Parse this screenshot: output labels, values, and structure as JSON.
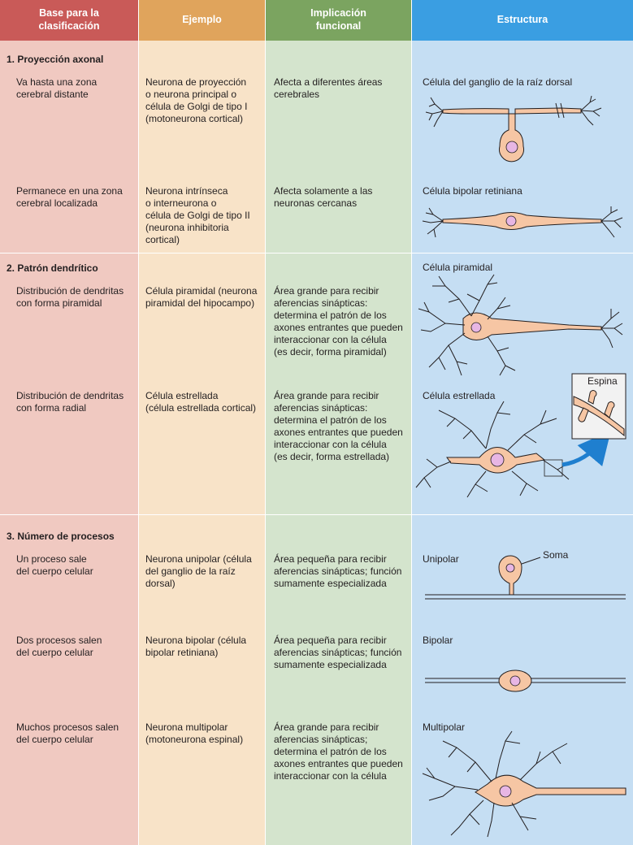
{
  "headers": {
    "col1": "Base para la\nclasificación",
    "col2": "Ejemplo",
    "col3": "Implicación\nfuncional",
    "col4": "Estructura"
  },
  "sections": [
    {
      "title": "1. Proyección axonal",
      "rows": [
        {
          "basis": "Va hasta una zona\ncerebral distante",
          "example": "Neurona de proyección\no neurona principal o\ncélula de Golgi de tipo I\n(motoneurona cortical)",
          "implication": "Afecta a diferentes áreas\ncerebrales",
          "structure": "Célula del ganglio de la raíz dorsal"
        },
        {
          "basis": "Permanece en una zona\ncerebral localizada",
          "example": "Neurona intrínseca\no interneurona o\ncélula de Golgi de tipo II\n(neurona inhibitoria\ncortical)",
          "implication": "Afecta solamente a las\nneuronas cercanas",
          "structure": "Célula bipolar retiniana"
        }
      ]
    },
    {
      "title": "2. Patrón dendrítico",
      "rows": [
        {
          "basis": "Distribución de dendritas\ncon forma piramidal",
          "example": "Célula piramidal (neurona\npiramidal del hipocampo)",
          "implication": "Área grande para recibir\naferencias sinápticas:\ndetermina el patrón de los\naxones entrantes que pueden\ninteraccionar con la célula\n(es decir, forma piramidal)",
          "structure": "Célula piramidal"
        },
        {
          "basis": "Distribución de dendritas\ncon forma radial",
          "example": "Célula estrellada\n(célula estrellada cortical)",
          "implication": "Área grande para recibir\naferencias sinápticas:\ndetermina el patrón de los\naxones entrantes que pueden\ninteraccionar con la célula\n(es decir, forma estrellada)",
          "structure": "Célula estrellada",
          "inset_label": "Espina"
        }
      ]
    },
    {
      "title": "3. Número de procesos",
      "rows": [
        {
          "basis": "Un proceso sale\ndel cuerpo celular",
          "example": "Neurona unipolar (célula\ndel ganglio de la raíz\ndorsal)",
          "implication": "Área pequeña para recibir\naferencias sinápticas; función\nsumamente especializada",
          "structure": "Unipolar",
          "soma_label": "Soma"
        },
        {
          "basis": "Dos procesos salen\ndel cuerpo celular",
          "example": "Neurona bipolar (célula\nbipolar retiniana)",
          "implication": "Área pequeña para recibir\naferencias sinápticas; función\nsumamente especializada",
          "structure": "Bipolar"
        },
        {
          "basis": "Muchos procesos salen\ndel cuerpo celular",
          "example": "Neurona multipolar\n(motoneurona espinal)",
          "implication": "Área grande para recibir\naferencias sinápticas;\ndetermina el patrón de los\naxones entrantes que pueden\ninteraccionar con la célula",
          "structure": "Multipolar"
        }
      ]
    }
  ],
  "colors": {
    "cell_body": "#f6c6a4",
    "nucleus": "#e7b6e4",
    "arrow": "#1f7fcf"
  }
}
